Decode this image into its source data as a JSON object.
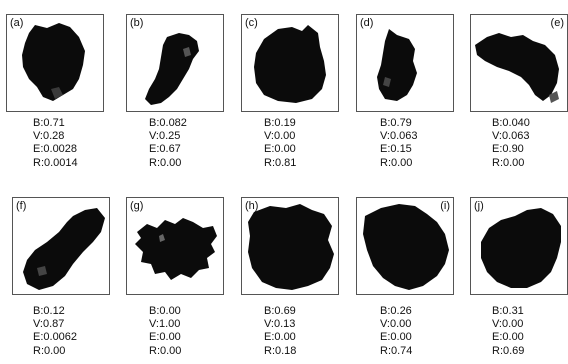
{
  "panels": [
    {
      "label": "(a)",
      "B": "B:0.71",
      "V": "V:0.28",
      "E": "E:0.0028",
      "R": "R:0.0014"
    },
    {
      "label": "(b)",
      "B": "B:0.082",
      "V": "V:0.25",
      "E": "E:0.67",
      "R": "R:0.00"
    },
    {
      "label": "(c)",
      "B": "B:0.19",
      "V": "V:0.00",
      "E": "E:0.00",
      "R": "R:0.81"
    },
    {
      "label": "(d)",
      "B": "B:0.79",
      "V": "V:0.063",
      "E": "E:0.15",
      "R": "R:0.00"
    },
    {
      "label": "(e)",
      "B": "B:0.040",
      "V": "V:0.063",
      "E": "E:0.90",
      "R": "R:0.00"
    },
    {
      "label": "(f)",
      "B": "B:0.12",
      "V": "V:0.87",
      "E": "E:0.0062",
      "R": "R:0.00"
    },
    {
      "label": "(g)",
      "B": "B:0.00",
      "V": "V:1.00",
      "E": "E:0.00",
      "R": "R:0.00"
    },
    {
      "label": "(h)",
      "B": "B:0.69",
      "V": "V:0.13",
      "E": "E:0.00",
      "R": "R:0.18"
    },
    {
      "label": "(i)",
      "B": "B:0.26",
      "V": "V:0.00",
      "E": "E:0.00",
      "R": "R:0.74"
    },
    {
      "label": "(j)",
      "B": "B:0.31",
      "V": "V:0.00",
      "E": "E:0.00",
      "R": "R:0.69"
    }
  ]
}
